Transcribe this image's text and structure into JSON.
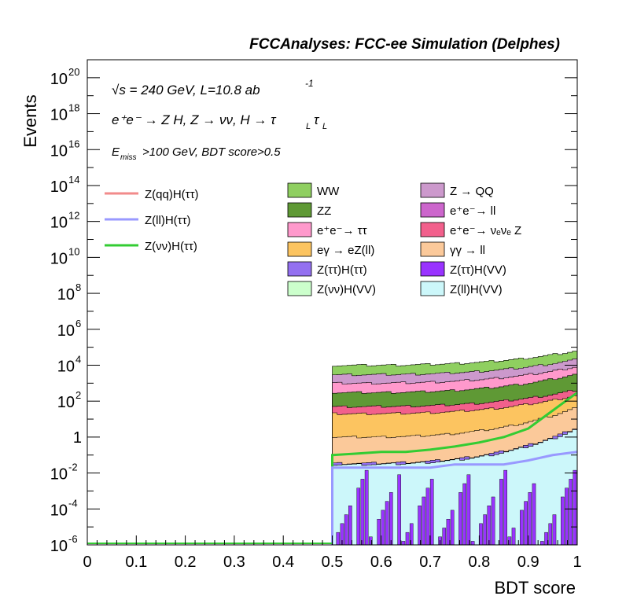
{
  "chart_data": {
    "type": "histogram",
    "title": "FCCAnalyses: FCC-ee Simulation (Delphes)",
    "xlabel": "BDT score",
    "ylabel": "Events",
    "y_scale": "log",
    "xlim": [
      0,
      1
    ],
    "ylim": [
      1e-06,
      1e+21
    ],
    "x_ticks": [
      "0",
      "0.1",
      "0.2",
      "0.3",
      "0.4",
      "0.5",
      "0.6",
      "0.7",
      "0.8",
      "0.9",
      "1"
    ],
    "y_ticks": [
      {
        "base": "10",
        "exp": "-6",
        "value": 1e-06
      },
      {
        "base": "10",
        "exp": "-4",
        "value": 0.0001
      },
      {
        "base": "10",
        "exp": "-2",
        "value": 0.01
      },
      {
        "base": "1",
        "exp": "",
        "value": 1
      },
      {
        "base": "10",
        "exp": "2",
        "value": 100.0
      },
      {
        "base": "10",
        "exp": "4",
        "value": 10000.0
      },
      {
        "base": "10",
        "exp": "6",
        "value": 1000000.0
      },
      {
        "base": "10",
        "exp": "8",
        "value": 100000000.0
      },
      {
        "base": "10",
        "exp": "10",
        "value": 10000000000.0
      },
      {
        "base": "10",
        "exp": "12",
        "value": 1000000000000.0
      },
      {
        "base": "10",
        "exp": "14",
        "value": 100000000000000.0
      },
      {
        "base": "10",
        "exp": "16",
        "value": 1e+16
      },
      {
        "base": "10",
        "exp": "18",
        "value": 1e+18
      },
      {
        "base": "10",
        "exp": "20",
        "value": 1e+20
      }
    ],
    "annotations": {
      "sqrt_s": "√s = 240 GeV, L=10.8 ab",
      "lumi_exp": "-1",
      "process": "e⁺e⁻ → Z H, Z → νν, H → τ",
      "tau_sub": "L",
      "sel_prefix": "E",
      "sel_sub": "miss",
      "sel_rest": ">100 GeV, BDT score>0.5"
    },
    "signal_legend": [
      {
        "label": "Z(qq)H(ττ)",
        "color": "#f28b8b"
      },
      {
        "label": "Z(ll)H(ττ)",
        "color": "#9999ff"
      },
      {
        "label": "Z(νν)H(ττ)",
        "color": "#33cc33"
      }
    ],
    "background_legend": [
      {
        "label": "WW",
        "color": "#8fcf60"
      },
      {
        "label": "Z → QQ",
        "color": "#cc99cc"
      },
      {
        "label": "ZZ",
        "color": "#5f9935"
      },
      {
        "label": "e⁺e⁻→ ll",
        "color": "#cc66cc"
      },
      {
        "label": "e⁺e⁻→ ττ",
        "color": "#ff99cc"
      },
      {
        "label": "e⁺e⁻→ νₑνₑ Z",
        "color": "#f2608c"
      },
      {
        "label": "eγ → eZ(ll)",
        "color": "#fcc460"
      },
      {
        "label": "γγ → ll",
        "color": "#fbc99a"
      },
      {
        "label": "Z(ττ)H(ττ)",
        "color": "#9370f0"
      },
      {
        "label": "Z(ττ)H(VV)",
        "color": "#9933ff"
      },
      {
        "label": "Z(νν)H(VV)",
        "color": "#ccffcc"
      },
      {
        "label": "Z(ll)H(VV)",
        "color": "#ccf7fa"
      }
    ],
    "stack_layers": [
      {
        "name": "Z(ll)H(VV)",
        "color": "#ccf7fa",
        "x_range": [
          0.5,
          1.0
        ],
        "top_start": 0.03,
        "top_end": 2.5
      },
      {
        "name": "Z(ττ)H(ττ)",
        "color": "#9370f0",
        "x_range": [
          0.5,
          1.0
        ],
        "top_start": 0.035,
        "top_end": 3.0
      },
      {
        "name": "γγ → ll",
        "color": "#fbc99a",
        "x_range": [
          0.5,
          1.0
        ],
        "top_start": 1.0,
        "top_end": 40
      },
      {
        "name": "eγ → eZ(ll)",
        "color": "#fcc460",
        "x_range": [
          0.5,
          1.0
        ],
        "top_start": 20,
        "top_end": 200
      },
      {
        "name": "e⁺e⁻→ νₑνₑ Z",
        "color": "#f2608c",
        "x_range": [
          0.5,
          1.0
        ],
        "top_start": 50,
        "top_end": 400
      },
      {
        "name": "ZZ",
        "color": "#5f9935",
        "x_range": [
          0.5,
          1.0
        ],
        "top_start": 300,
        "top_end": 3000
      },
      {
        "name": "e⁺e⁻→ ττ",
        "color": "#ff99cc",
        "x_range": [
          0.5,
          1.0
        ],
        "top_start": 1000,
        "top_end": 8000
      },
      {
        "name": "Z → QQ",
        "color": "#cc99cc",
        "x_range": [
          0.5,
          1.0
        ],
        "top_start": 3000,
        "top_end": 20000
      },
      {
        "name": "WW",
        "color": "#8fcf60",
        "x_range": [
          0.5,
          1.0
        ],
        "top_start": 10000,
        "top_end": 60000
      }
    ],
    "signal_lines": [
      {
        "name": "Z(νν)H(ττ)",
        "color": "#33cc33",
        "x": [
          0.5,
          0.55,
          0.6,
          0.65,
          0.7,
          0.75,
          0.8,
          0.85,
          0.9,
          0.95,
          1.0
        ],
        "y": [
          0.1,
          0.12,
          0.15,
          0.15,
          0.2,
          0.3,
          0.5,
          1.0,
          3.0,
          30,
          300
        ]
      },
      {
        "name": "Z(ll)H(ττ)",
        "color": "#9999ff",
        "x": [
          0.5,
          0.55,
          0.6,
          0.65,
          0.7,
          0.75,
          0.8,
          0.85,
          0.9,
          0.95,
          1.0
        ],
        "y": [
          0.02,
          0.02,
          0.02,
          0.02,
          0.02,
          0.03,
          0.03,
          0.03,
          0.05,
          0.1,
          0.15
        ]
      }
    ]
  }
}
